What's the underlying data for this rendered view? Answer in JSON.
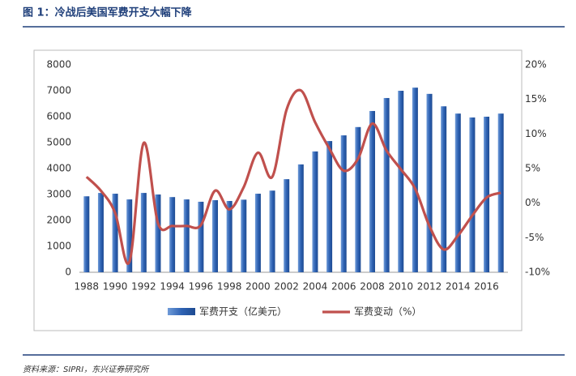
{
  "chart_data": {
    "type": "bar-line",
    "title": "图 1：冷战后美国军费开支大幅下降",
    "source": "资料来源：SIPRI，东兴证券研究所",
    "categories": [
      "1988",
      null,
      "1990",
      null,
      "1992",
      null,
      "1994",
      null,
      "1996",
      null,
      "1998",
      null,
      "2000",
      null,
      "2002",
      null,
      "2004",
      null,
      "2006",
      null,
      "2008",
      null,
      "2010",
      null,
      "2012",
      null,
      "2014",
      null,
      "2016",
      null
    ],
    "series": [
      {
        "name": "军费开支（亿美元）",
        "type": "bar",
        "color": "#3a6cb8",
        "values": [
          2930,
          3060,
          3030,
          2810,
          3060,
          3000,
          2900,
          2810,
          2720,
          2780,
          2750,
          2800,
          3030,
          3150,
          3590,
          4160,
          4660,
          5060,
          5280,
          5600,
          6220,
          6720,
          7000,
          7120,
          6880,
          6400,
          6120,
          5970,
          6000,
          6120
        ]
      },
      {
        "name": "军费变动（%）",
        "type": "line",
        "axis": "y2",
        "color": "#c0504d",
        "values": [
          3.8,
          1.8,
          -1.4,
          -8.5,
          8.7,
          -2.9,
          -3.3,
          -3.3,
          -3.2,
          1.8,
          -0.9,
          2.3,
          7.3,
          3.8,
          13.5,
          16.3,
          11.7,
          7.9,
          4.7,
          6.4,
          11.5,
          7.6,
          4.9,
          2.1,
          -3.3,
          -6.7,
          -4.7,
          -1.8,
          0.8,
          1.5
        ]
      }
    ],
    "ylim": [
      0,
      8000
    ],
    "yticks": [
      0,
      1000,
      2000,
      3000,
      4000,
      5000,
      6000,
      7000,
      8000
    ],
    "y2lim": [
      -10,
      20
    ],
    "y2ticks": [
      {
        "value": -10,
        "label": "-10%"
      },
      {
        "value": -5,
        "label": "-5%"
      },
      {
        "value": 0,
        "label": "0%"
      },
      {
        "value": 5,
        "label": "5%"
      },
      {
        "value": 10,
        "label": "10%"
      },
      {
        "value": 15,
        "label": "15%"
      },
      {
        "value": 20,
        "label": "20%"
      }
    ],
    "legend": "bottom"
  }
}
